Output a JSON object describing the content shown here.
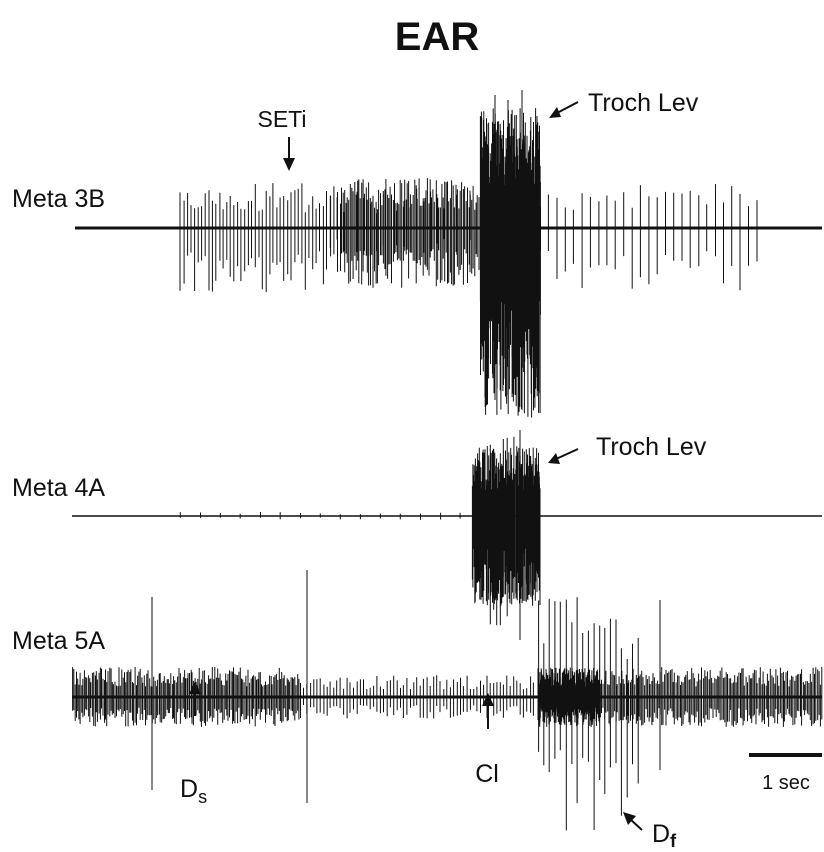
{
  "title": "EAR",
  "colors": {
    "ink": "#111111",
    "background": "#ffffff"
  },
  "traces": [
    {
      "label": "Meta 3B"
    },
    {
      "label": "Meta 4A"
    },
    {
      "label": "Meta 5A"
    }
  ],
  "annotations": {
    "seti": "SETi",
    "troch_lev_1": "Troch Lev",
    "troch_lev_2": "Troch Lev",
    "ds_main": "D",
    "ds_sub": "s",
    "cl": "Cl",
    "df_main": "D",
    "df_sub": "f"
  },
  "scale_bar": {
    "label": "1 sec"
  }
}
